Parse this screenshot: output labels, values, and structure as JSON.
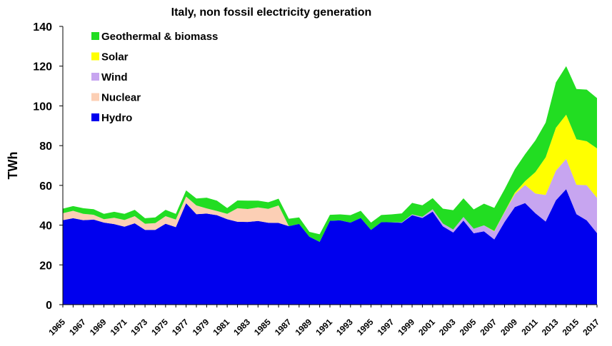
{
  "chart_data": {
    "type": "area",
    "stacked": true,
    "title": "Italy, non fossil electricity generation",
    "ylabel": "TWh",
    "xlabel": "",
    "ylim": [
      0,
      140
    ],
    "yticks": [
      0,
      20,
      40,
      60,
      80,
      100,
      120,
      140
    ],
    "xlim": [
      1965,
      2017
    ],
    "xtick_labels": [
      "1965",
      "1967",
      "1969",
      "1971",
      "1973",
      "1975",
      "1977",
      "1979",
      "1981",
      "1983",
      "1985",
      "1987",
      "1989",
      "1991",
      "1993",
      "1995",
      "1997",
      "1999",
      "2001",
      "2003",
      "2005",
      "2007",
      "2009",
      "2011",
      "2013",
      "2015",
      "2017"
    ],
    "grid": false,
    "legend_position": "top-left",
    "legend_order": [
      "Geothermal & biomass",
      "Solar",
      "Wind",
      "Nuclear",
      "Hydro"
    ],
    "x": [
      1965,
      1966,
      1967,
      1968,
      1969,
      1970,
      1971,
      1972,
      1973,
      1974,
      1975,
      1976,
      1977,
      1978,
      1979,
      1980,
      1981,
      1982,
      1983,
      1984,
      1985,
      1986,
      1987,
      1988,
      1989,
      1990,
      1991,
      1992,
      1993,
      1994,
      1995,
      1996,
      1997,
      1998,
      1999,
      2000,
      2001,
      2002,
      2003,
      2004,
      2005,
      2006,
      2007,
      2008,
      2009,
      2010,
      2011,
      2012,
      2013,
      2014,
      2015,
      2016,
      2017
    ],
    "series": [
      {
        "name": "Hydro",
        "color": "#0000ee",
        "values": [
          42.5,
          43.5,
          42.5,
          42.8,
          41.3,
          40.5,
          39.2,
          40.9,
          37.6,
          37.6,
          40.7,
          39.0,
          51.0,
          45.5,
          45.8,
          45.0,
          43.0,
          41.7,
          41.6,
          42.1,
          41.2,
          41.1,
          39.5,
          40.6,
          34.2,
          31.6,
          42.2,
          42.4,
          41.3,
          43.6,
          37.6,
          41.5,
          41.4,
          41.2,
          45.0,
          43.6,
          46.8,
          39.4,
          36.3,
          42.3,
          35.9,
          36.9,
          32.8,
          41.6,
          49.1,
          51.1,
          46.0,
          41.8,
          52.5,
          58.1,
          45.5,
          42.4,
          36.0
        ]
      },
      {
        "name": "Nuclear",
        "color": "#fccfb5",
        "values": [
          3.5,
          3.7,
          3.2,
          2.4,
          1.7,
          3.2,
          3.4,
          3.6,
          3.1,
          3.4,
          3.8,
          3.8,
          3.4,
          4.4,
          2.6,
          2.1,
          2.7,
          6.8,
          6.5,
          6.8,
          7.0,
          8.8,
          0,
          0,
          0,
          0,
          0,
          0,
          0,
          0,
          0,
          0,
          0,
          0,
          0,
          0,
          0,
          0,
          0,
          0,
          0,
          0,
          0,
          0,
          0,
          0,
          0,
          0,
          0,
          0,
          0,
          0,
          0
        ]
      },
      {
        "name": "Wind",
        "color": "#c7a5f0",
        "values": [
          0,
          0,
          0,
          0,
          0,
          0,
          0,
          0,
          0,
          0,
          0,
          0,
          0,
          0,
          0,
          0,
          0,
          0,
          0,
          0,
          0,
          0,
          0,
          0,
          0,
          0,
          0,
          0,
          0,
          0,
          0,
          0,
          0,
          0.2,
          0.4,
          0.6,
          1.2,
          1.4,
          1.5,
          1.8,
          2.3,
          3.0,
          4.0,
          4.9,
          6.5,
          9.1,
          9.9,
          13.4,
          14.9,
          15.2,
          14.8,
          17.7,
          17.7
        ]
      },
      {
        "name": "Solar",
        "color": "#ffff00",
        "values": [
          0,
          0,
          0,
          0,
          0,
          0,
          0,
          0,
          0,
          0,
          0,
          0,
          0,
          0,
          0,
          0,
          0,
          0,
          0,
          0,
          0,
          0,
          0,
          0,
          0,
          0,
          0,
          0,
          0,
          0,
          0,
          0,
          0,
          0,
          0,
          0,
          0,
          0,
          0,
          0,
          0,
          0,
          0.2,
          0.2,
          0.7,
          1.9,
          10.8,
          18.9,
          21.6,
          22.3,
          22.9,
          22.1,
          24.9
        ]
      },
      {
        "name": "Geothermal & biomass",
        "color": "#22dd22",
        "values": [
          2.3,
          2.4,
          2.8,
          2.8,
          2.7,
          3.0,
          3.1,
          3.2,
          2.8,
          2.9,
          3.2,
          2.9,
          3.1,
          3.5,
          5.4,
          5.2,
          2.9,
          3.9,
          4.2,
          3.4,
          3.3,
          3.4,
          3.7,
          3.3,
          2.4,
          3.8,
          3.0,
          3.0,
          3.7,
          3.6,
          3.7,
          3.6,
          4.0,
          4.5,
          5.8,
          5.8,
          5.6,
          7.5,
          9.7,
          9.4,
          9.7,
          10.9,
          11.7,
          11.3,
          11.8,
          13.6,
          15.9,
          17.5,
          22.8,
          24.4,
          25.3,
          26.0,
          25.3
        ]
      }
    ]
  }
}
